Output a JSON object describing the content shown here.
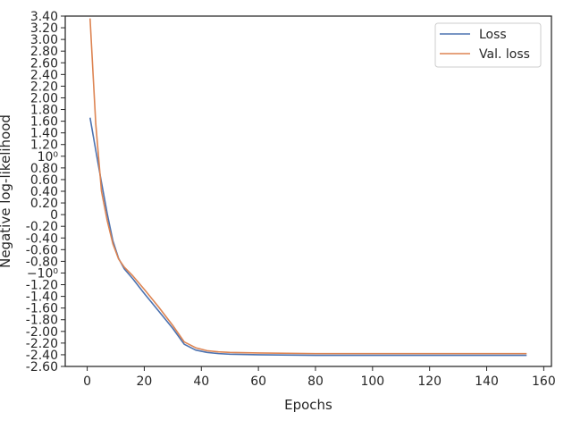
{
  "chart_data": {
    "type": "line",
    "xlabel": "Epochs",
    "ylabel": "Negative log-likelihood",
    "xlim": [
      -7.7,
      162.7
    ],
    "ylim": [
      -2.6,
      3.4
    ],
    "x_ticks": [
      0,
      20,
      40,
      60,
      80,
      100,
      120,
      140,
      160
    ],
    "y_ticks": [
      {
        "v": 3.4,
        "label": "3.40"
      },
      {
        "v": 3.2,
        "label": "3.20"
      },
      {
        "v": 3.0,
        "label": "3.00"
      },
      {
        "v": 2.8,
        "label": "2.80"
      },
      {
        "v": 2.6,
        "label": "2.60"
      },
      {
        "v": 2.4,
        "label": "2.40"
      },
      {
        "v": 2.2,
        "label": "2.20"
      },
      {
        "v": 2.0,
        "label": "2.00"
      },
      {
        "v": 1.8,
        "label": "1.80"
      },
      {
        "v": 1.6,
        "label": "1.60"
      },
      {
        "v": 1.4,
        "label": "1.40"
      },
      {
        "v": 1.2,
        "label": "1.20"
      },
      {
        "v": 1.0,
        "label": "10⁰"
      },
      {
        "v": 0.8,
        "label": "0.80"
      },
      {
        "v": 0.6,
        "label": "0.60"
      },
      {
        "v": 0.4,
        "label": "0.40"
      },
      {
        "v": 0.2,
        "label": "0.20"
      },
      {
        "v": 0.0,
        "label": "0"
      },
      {
        "v": -0.2,
        "label": "-0.20"
      },
      {
        "v": -0.4,
        "label": "-0.40"
      },
      {
        "v": -0.6,
        "label": "-0.60"
      },
      {
        "v": -0.8,
        "label": "-0.80"
      },
      {
        "v": -1.0,
        "label": "−10⁰"
      },
      {
        "v": -1.2,
        "label": "-1.20"
      },
      {
        "v": -1.4,
        "label": "-1.40"
      },
      {
        "v": -1.6,
        "label": "-1.60"
      },
      {
        "v": -1.8,
        "label": "-1.80"
      },
      {
        "v": -2.0,
        "label": "-2.00"
      },
      {
        "v": -2.2,
        "label": "-2.20"
      },
      {
        "v": -2.4,
        "label": "-2.40"
      },
      {
        "v": -2.6,
        "label": "-2.60"
      }
    ],
    "legend_position": "top-right",
    "grid": false,
    "series": [
      {
        "name": "Loss",
        "color": "#4c72b0",
        "x": [
          1,
          3,
          5,
          7,
          9,
          11,
          13,
          16,
          20,
          25,
          30,
          34,
          38,
          42,
          46,
          50,
          60,
          80,
          100,
          120,
          140,
          154
        ],
        "y": [
          1.66,
          1.1,
          0.55,
          0.02,
          -0.45,
          -0.75,
          -0.93,
          -1.1,
          -1.35,
          -1.65,
          -1.95,
          -2.22,
          -2.32,
          -2.36,
          -2.38,
          -2.39,
          -2.4,
          -2.41,
          -2.41,
          -2.41,
          -2.41,
          -2.41
        ]
      },
      {
        "name": "Val. loss",
        "color": "#dd8452",
        "x": [
          1,
          3,
          5,
          7,
          9,
          11,
          13,
          16,
          20,
          25,
          30,
          34,
          38,
          42,
          46,
          50,
          60,
          80,
          100,
          120,
          140,
          154
        ],
        "y": [
          3.36,
          1.55,
          0.4,
          -0.1,
          -0.5,
          -0.76,
          -0.9,
          -1.05,
          -1.28,
          -1.58,
          -1.9,
          -2.18,
          -2.28,
          -2.33,
          -2.35,
          -2.36,
          -2.37,
          -2.38,
          -2.38,
          -2.38,
          -2.38,
          -2.38
        ]
      }
    ]
  }
}
